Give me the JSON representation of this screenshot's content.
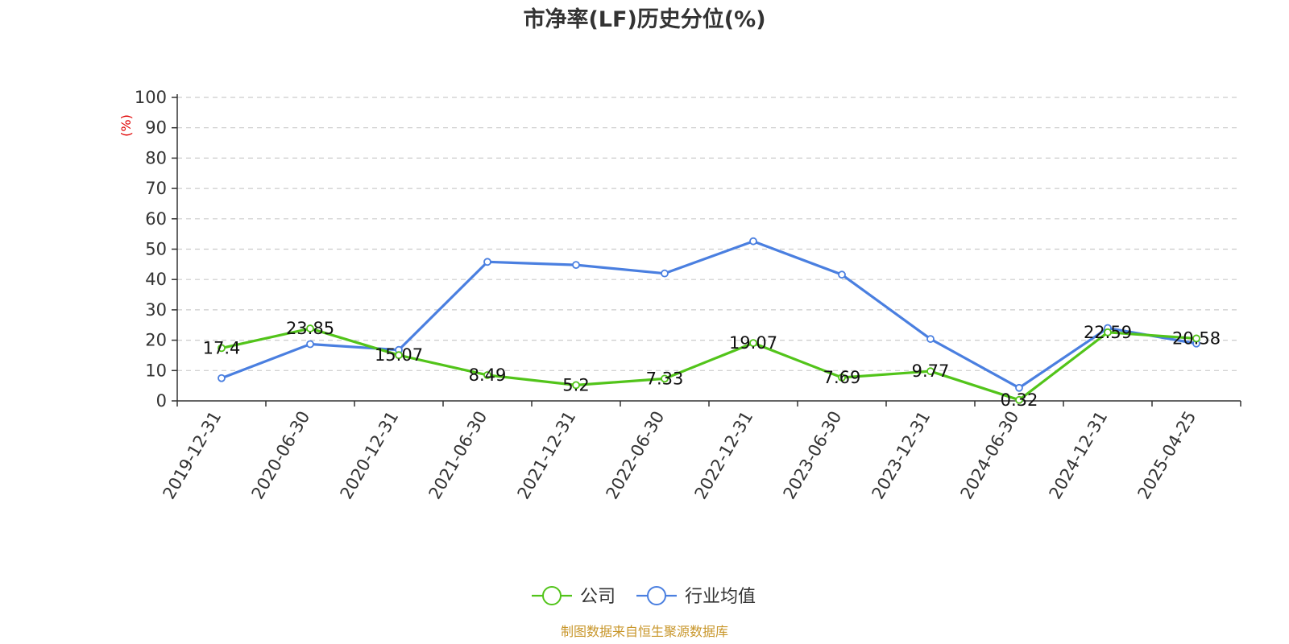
{
  "chart_data": {
    "type": "line",
    "title": "市净率(LF)历史分位(%)",
    "ylabel": "(%)",
    "ylim": [
      0,
      100
    ],
    "yticks": [
      0,
      10,
      20,
      30,
      40,
      50,
      60,
      70,
      80,
      90,
      100
    ],
    "grid": "horizontal-dashed",
    "legend_position": "bottom-center",
    "categories": [
      "2019-12-31",
      "2020-06-30",
      "2020-12-31",
      "2021-06-30",
      "2021-12-31",
      "2022-06-30",
      "2022-12-31",
      "2023-06-30",
      "2023-12-31",
      "2024-06-30",
      "2024-12-31",
      "2025-04-25"
    ],
    "series": [
      {
        "name": "公司",
        "color": "#52c41a",
        "values": [
          17.4,
          23.85,
          15.07,
          8.49,
          5.2,
          7.33,
          19.07,
          7.69,
          9.77,
          0.32,
          22.59,
          20.58
        ],
        "data_labels": [
          "17.4",
          "23.85",
          "15.07",
          "8.49",
          "5.2",
          "7.33",
          "19.07",
          "7.69",
          "9.77",
          "0.32",
          "22.59",
          "20.58"
        ]
      },
      {
        "name": "行业均值",
        "color": "#4a7fe0",
        "values": [
          7.5,
          18.7,
          16.8,
          45.8,
          44.8,
          42.0,
          52.6,
          41.6,
          20.4,
          4.3,
          24.0,
          18.9
        ]
      }
    ],
    "source_note": "制图数据来自恒生聚源数据库"
  }
}
